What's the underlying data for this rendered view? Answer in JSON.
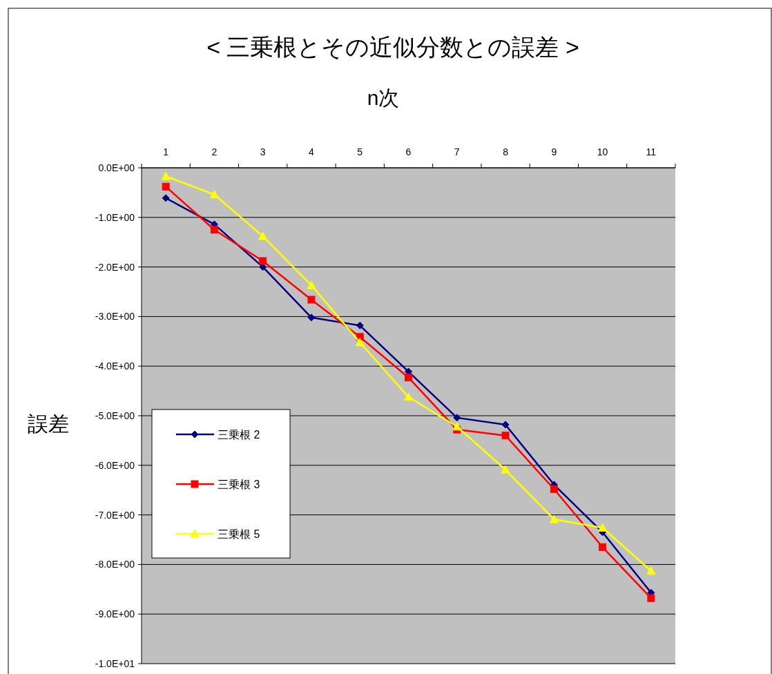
{
  "chart_data": {
    "type": "line",
    "title": "< 三乗根とその近似分数との誤差 >",
    "xlabel": "n次",
    "ylabel": "誤差",
    "categories": [
      "1",
      "2",
      "3",
      "4",
      "5",
      "6",
      "7",
      "8",
      "9",
      "10",
      "11"
    ],
    "series": [
      {
        "name": "三乗根 2",
        "color": "#000080",
        "marker": "diamond",
        "values": [
          -0.61,
          -1.14,
          -2.0,
          -3.02,
          -3.18,
          -4.11,
          -5.04,
          -5.18,
          -6.39,
          -7.35,
          -8.57
        ]
      },
      {
        "name": "三乗根 3",
        "color": "#ff0000",
        "marker": "square",
        "values": [
          -0.38,
          -1.25,
          -1.88,
          -2.66,
          -3.41,
          -4.23,
          -5.28,
          -5.4,
          -6.48,
          -7.65,
          -8.68
        ]
      },
      {
        "name": "三乗根 5",
        "color": "#ffff00",
        "marker": "triangle",
        "values": [
          -0.17,
          -0.54,
          -1.38,
          -2.37,
          -3.52,
          -4.62,
          -5.22,
          -6.09,
          -7.09,
          -7.26,
          -8.13
        ]
      }
    ],
    "ylim": [
      -10,
      0
    ],
    "yticks": [
      {
        "value": 0,
        "label": "0.0E+00"
      },
      {
        "value": -1,
        "label": "-1.0E+00"
      },
      {
        "value": -2,
        "label": "-2.0E+00"
      },
      {
        "value": -3,
        "label": "-3.0E+00"
      },
      {
        "value": -4,
        "label": "-4.0E+00"
      },
      {
        "value": -5,
        "label": "-5.0E+00"
      },
      {
        "value": -6,
        "label": "-6.0E+00"
      },
      {
        "value": -7,
        "label": "-7.0E+00"
      },
      {
        "value": -8,
        "label": "-8.0E+00"
      },
      {
        "value": -9,
        "label": "-9.0E+00"
      },
      {
        "value": -10,
        "label": "-1.0E+01"
      }
    ],
    "grid": "y",
    "legend": "left",
    "line_style": "solid"
  }
}
